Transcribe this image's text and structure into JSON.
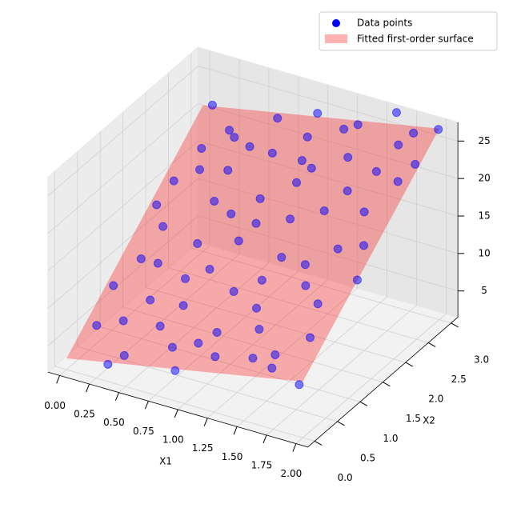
{
  "chart_data": {
    "type": "scatter3d",
    "xlabel": "X1",
    "ylabel": "X2",
    "xlim": [
      -0.1,
      2.1
    ],
    "ylim": [
      -0.15,
      3.15
    ],
    "zlim": [
      1.5,
      27.5
    ],
    "xticks": [
      {
        "value": 0,
        "label": "0.00"
      },
      {
        "value": 0.25,
        "label": "0.25"
      },
      {
        "value": 0.5,
        "label": "0.50"
      },
      {
        "value": 0.75,
        "label": "0.75"
      },
      {
        "value": 1,
        "label": "1.00"
      },
      {
        "value": 1.25,
        "label": "1.25"
      },
      {
        "value": 1.5,
        "label": "1.50"
      },
      {
        "value": 1.75,
        "label": "1.75"
      },
      {
        "value": 2,
        "label": "2.00"
      }
    ],
    "yticks": [
      {
        "value": 0,
        "label": "0.0"
      },
      0.5,
      {
        "value": 1,
        "label": "1.0"
      },
      1.5,
      {
        "value": 2,
        "label": "2.0"
      },
      2.5,
      {
        "value": 3,
        "label": "3.0"
      }
    ],
    "zticks": [
      5,
      10,
      15,
      20,
      25
    ],
    "grid": true,
    "legend": "upper right",
    "series": [
      {
        "name": "Data points",
        "color": "#0000ff",
        "x": [
          0.12,
          0.45,
          0.8,
          1.2,
          1.65,
          1.95,
          0.05,
          0.35,
          0.7,
          1.05,
          1.4,
          1.8,
          0.2,
          0.55,
          0.95,
          1.3,
          1.7,
          1.98,
          0.1,
          0.48,
          0.85,
          1.15,
          1.55,
          1.9,
          0.3,
          0.65,
          1.0,
          1.35,
          1.75,
          2.0,
          0.25,
          0.6,
          0.9,
          1.1,
          1.5,
          1.85,
          0.15,
          0.4,
          0.75,
          1.25,
          1.6,
          1.9,
          0.05,
          0.5,
          0.88,
          1.2,
          1.45,
          1.75,
          0.18,
          0.4,
          0.78,
          1.1,
          1.4,
          1.68,
          0.08,
          0.55,
          0.95,
          1.25,
          1.6,
          1.95,
          0.35,
          1.0,
          1.7,
          0.62,
          1.52,
          0.28,
          1.05,
          1.82,
          0.7,
          1.3
        ],
        "y": [
          0.35,
          0.1,
          0.25,
          0.15,
          0.3,
          0.05,
          0.9,
          1.1,
          0.75,
          0.95,
          0.6,
          0.85,
          1.6,
          1.45,
          1.7,
          1.35,
          1.55,
          1.25,
          2.1,
          2.3,
          2.05,
          2.4,
          2.15,
          2.35,
          2.8,
          2.95,
          2.7,
          2.9,
          2.75,
          2.98,
          0.6,
          0.5,
          0.05,
          0.45,
          0.2,
          0.55,
          1.25,
          0.8,
          1.2,
          1.05,
          1.1,
          1.6,
          1.85,
          1.95,
          1.5,
          1.8,
          1.9,
          2.0,
          2.5,
          2.65,
          2.5,
          2.2,
          2.55,
          2.45,
          3.0,
          2.6,
          3.05,
          2.85,
          3.1,
          2.6,
          0.0,
          0.3,
          0.1,
          1.0,
          1.3,
          2.2,
          2.45,
          2.9,
          1.8,
          0.8
        ],
        "z": [
          6.1,
          4.9,
          6.8,
          7.9,
          9.4,
          8.1,
          8.2,
          11.5,
          9.3,
          11.7,
          10.1,
          14.0,
          13.1,
          13.2,
          16.4,
          15.3,
          17.2,
          15.9,
          16.1,
          18.2,
          17.4,
          21.0,
          21.1,
          22.9,
          20.1,
          22.5,
          22.9,
          25.1,
          25.0,
          27.0,
          6.0,
          7.4,
          5.2,
          9.1,
          8.8,
          11.3,
          10.4,
          8.4,
          12.0,
          13.6,
          14.2,
          18.3,
          14.0,
          16.0,
          14.8,
          17.6,
          19.3,
          20.0,
          18.7,
          20.4,
          20.8,
          19.9,
          22.8,
          22.7,
          21.4,
          20.1,
          24.0,
          24.3,
          26.8,
          24.1,
          3.8,
          8.0,
          8.9,
          11.2,
          15.6,
          17.9,
          21.3,
          26.1,
          16.0,
          11.4
        ]
      }
    ],
    "surface": {
      "name": "Fitted first-order surface",
      "color": "#ff0000",
      "x": [
        0,
        2
      ],
      "y": [
        0,
        3
      ],
      "z": [
        [
          3,
          21
        ],
        [
          9,
          27
        ]
      ]
    }
  }
}
